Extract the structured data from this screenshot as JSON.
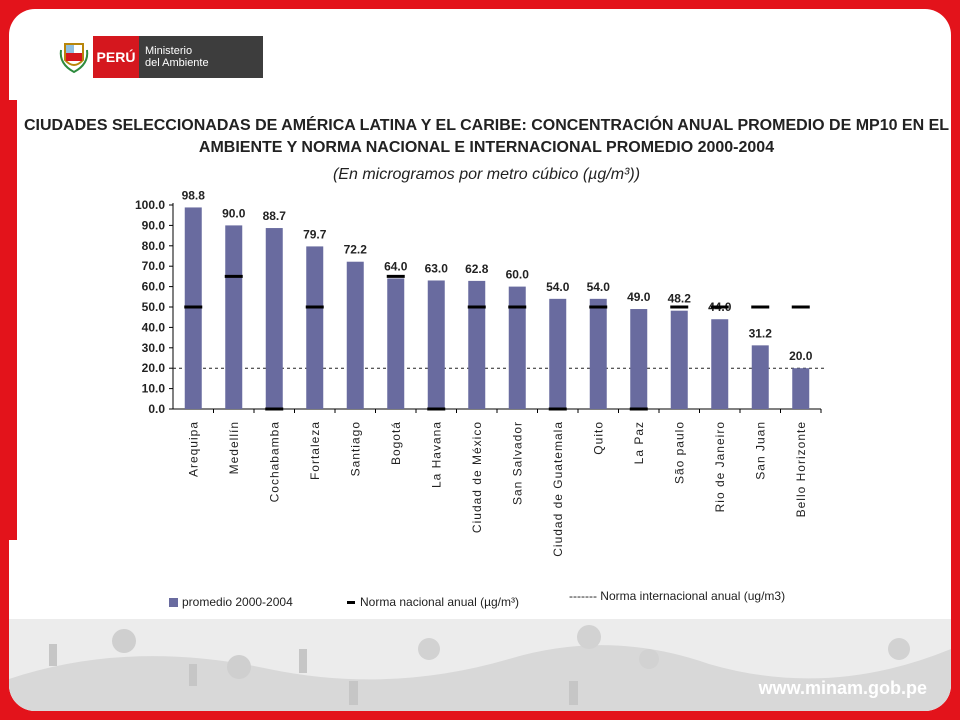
{
  "header": {
    "country_label": "PERÚ",
    "ministry_line1": "Ministerio",
    "ministry_line2": "del Ambiente",
    "crest_icon": "peru-coat-of-arms-icon"
  },
  "title_line1": "CIUDADES SELECCIONADAS DE AMÉRICA LATINA Y EL CARIBE: CONCENTRACIÓN ANUAL PROMEDIO DE MP10 EN EL",
  "title_line2": "AMBIENTE Y NORMA NACIONAL E INTERNACIONAL PROMEDIO 2000-2004",
  "subtitle": "(En microgramos por metro cúbico (µg/m³))",
  "chart_data": {
    "type": "bar",
    "categories": [
      "Arequipa",
      "Medellín",
      "Cochabamba",
      "Fortaleza",
      "Santiago",
      "Bogotá",
      "La Havana",
      "Ciudad de México",
      "San Salvador",
      "Ciudad de Guatemala",
      "Quito",
      "La Paz",
      "São paulo",
      "Rio de Janeiro",
      "San Juan",
      "Bello Horizonte"
    ],
    "series": [
      {
        "name": "promedio 2000-2004",
        "values": [
          98.8,
          90.0,
          88.7,
          79.7,
          72.2,
          64.0,
          63.0,
          62.8,
          60.0,
          54.0,
          54.0,
          49.0,
          48.2,
          44.0,
          31.2,
          20.0
        ],
        "color": "#696b9f"
      }
    ],
    "value_labels": [
      "98.8",
      "90.0",
      "88.7",
      "79.7",
      "72.2",
      "64.0",
      "63.0",
      "62.8",
      "60.0",
      "54.0",
      "54.0",
      "49.0",
      "48.2",
      "44.0",
      "31.2",
      "20.0"
    ],
    "national_norm": [
      50,
      65,
      0,
      50,
      null,
      65,
      0,
      50,
      50,
      0,
      50,
      0,
      50,
      50,
      50,
      50
    ],
    "international_norm": 20,
    "yticks": [
      "100.0",
      "90.0",
      "80.0",
      "70.0",
      "60.0",
      "50.0",
      "40.0",
      "30.0",
      "20.0",
      "10.0",
      "0.0"
    ],
    "ylim": [
      0,
      100
    ],
    "legend": {
      "bars": "promedio 2000-2004",
      "national": "Norma nacional anual (µg/m³)",
      "international": "------- Norma internacional anual (ug/m3)"
    }
  },
  "footer": {
    "website": "www.minam.gob.pe"
  }
}
